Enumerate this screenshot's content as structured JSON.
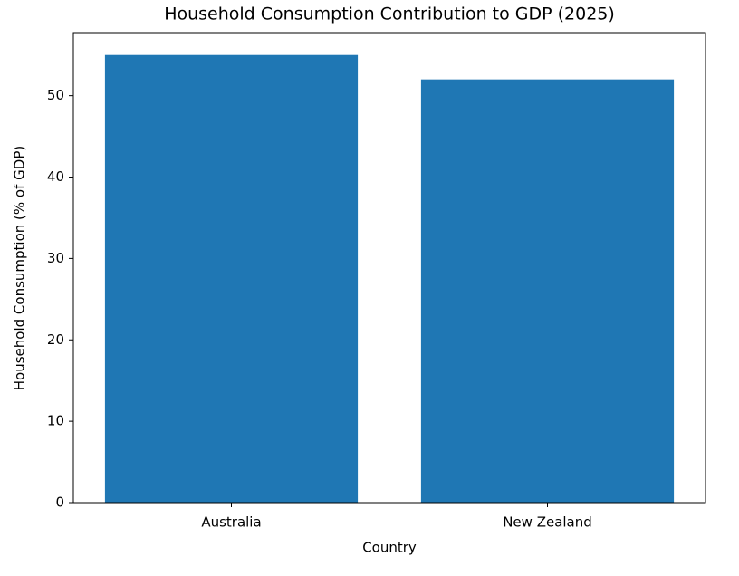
{
  "chart_data": {
    "type": "bar",
    "title": "Household Consumption Contribution to GDP (2025)",
    "x_label": "Country",
    "y_label": "Household Consumption (% of GDP)",
    "categories": [
      "Australia",
      "New Zealand"
    ],
    "values": [
      55,
      52
    ],
    "color": "#1f77b4",
    "ylim": [
      0,
      57.75
    ],
    "yticks": [
      0,
      10,
      20,
      30,
      40,
      50
    ],
    "grid": false
  }
}
